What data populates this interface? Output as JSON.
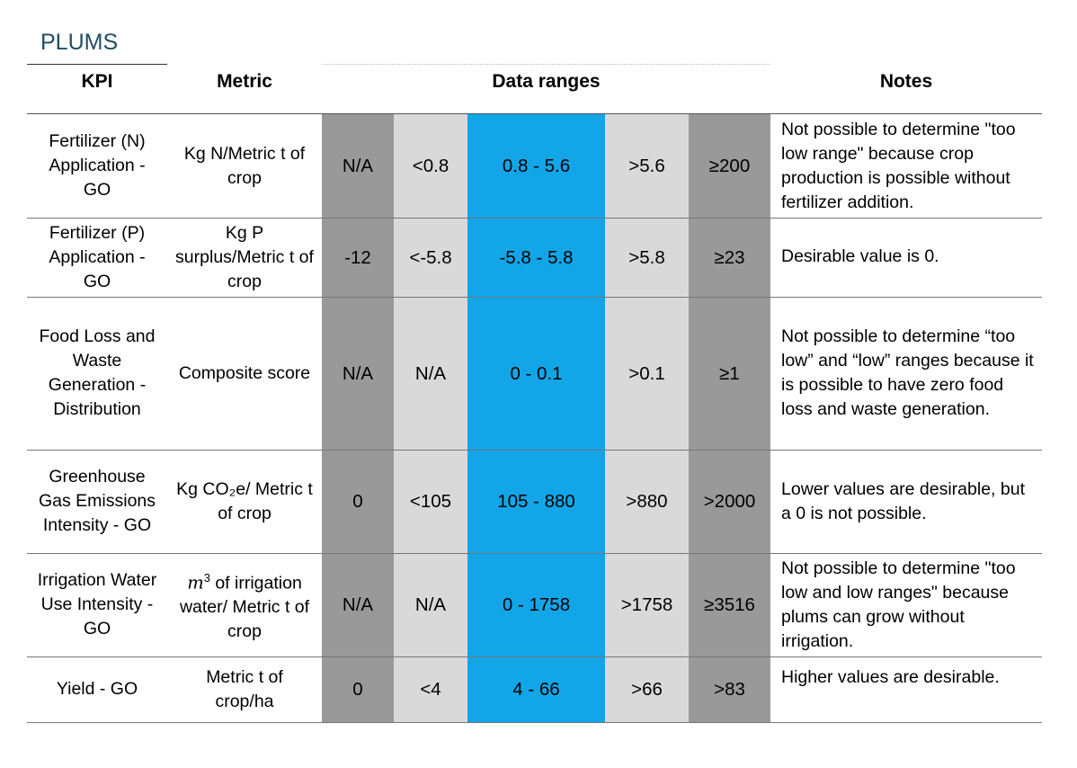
{
  "title": "PLUMS",
  "headers": {
    "kpi": "KPI",
    "metric": "Metric",
    "data_ranges": "Data ranges",
    "notes": "Notes"
  },
  "colors": {
    "dark_gray": "#999999",
    "light_gray": "#d9d9d9",
    "blue": "#12a6e8",
    "title": "#1f4e63"
  },
  "rows": [
    {
      "kpi": "Fertilizer (N) Application - GO",
      "metric": "Kg N/Metric t of crop",
      "ranges": [
        "N/A",
        "<0.8",
        "0.8 - 5.6",
        ">5.6",
        "≥200"
      ],
      "notes": "Not possible to determine \"too low range\" because crop production is possible without fertilizer addition."
    },
    {
      "kpi": "Fertilizer (P) Application - GO",
      "metric": "Kg P surplus/Metric t of crop",
      "ranges": [
        "-12",
        "<-5.8",
        "-5.8 - 5.8",
        ">5.8",
        "≥23"
      ],
      "notes": "Desirable value is 0."
    },
    {
      "kpi": "Food Loss and Waste Generation - Distribution",
      "metric": "Composite score",
      "ranges": [
        "N/A",
        "N/A",
        "0 - 0.1",
        ">0.1",
        "≥1"
      ],
      "notes": "Not possible to determine “too low” and “low” ranges because it is possible to have zero food loss and waste generation."
    },
    {
      "kpi": "Greenhouse Gas Emissions Intensity - GO",
      "metric": "Kg CO₂e/ Metric t of crop",
      "ranges": [
        "0",
        "<105",
        "105 - 880",
        ">880",
        ">2000"
      ],
      "notes": "Lower values are desirable, but a 0 is not possible."
    },
    {
      "kpi": "Irrigation Water Use Intensity - GO",
      "metric_unit": "m",
      "metric_sup": "3",
      "metric_rest": " of irrigation water/ Metric t of crop",
      "ranges": [
        "N/A",
        "N/A",
        "0 - 1758",
        ">1758",
        "≥3516"
      ],
      "notes": "Not possible to determine \"too low and low ranges\" because plums can grow without irrigation."
    },
    {
      "kpi": "Yield - GO",
      "metric": "Metric t of crop/ha",
      "ranges": [
        "0",
        "<4",
        "4 - 66",
        ">66",
        ">83"
      ],
      "notes": "Higher values are desirable."
    }
  ]
}
